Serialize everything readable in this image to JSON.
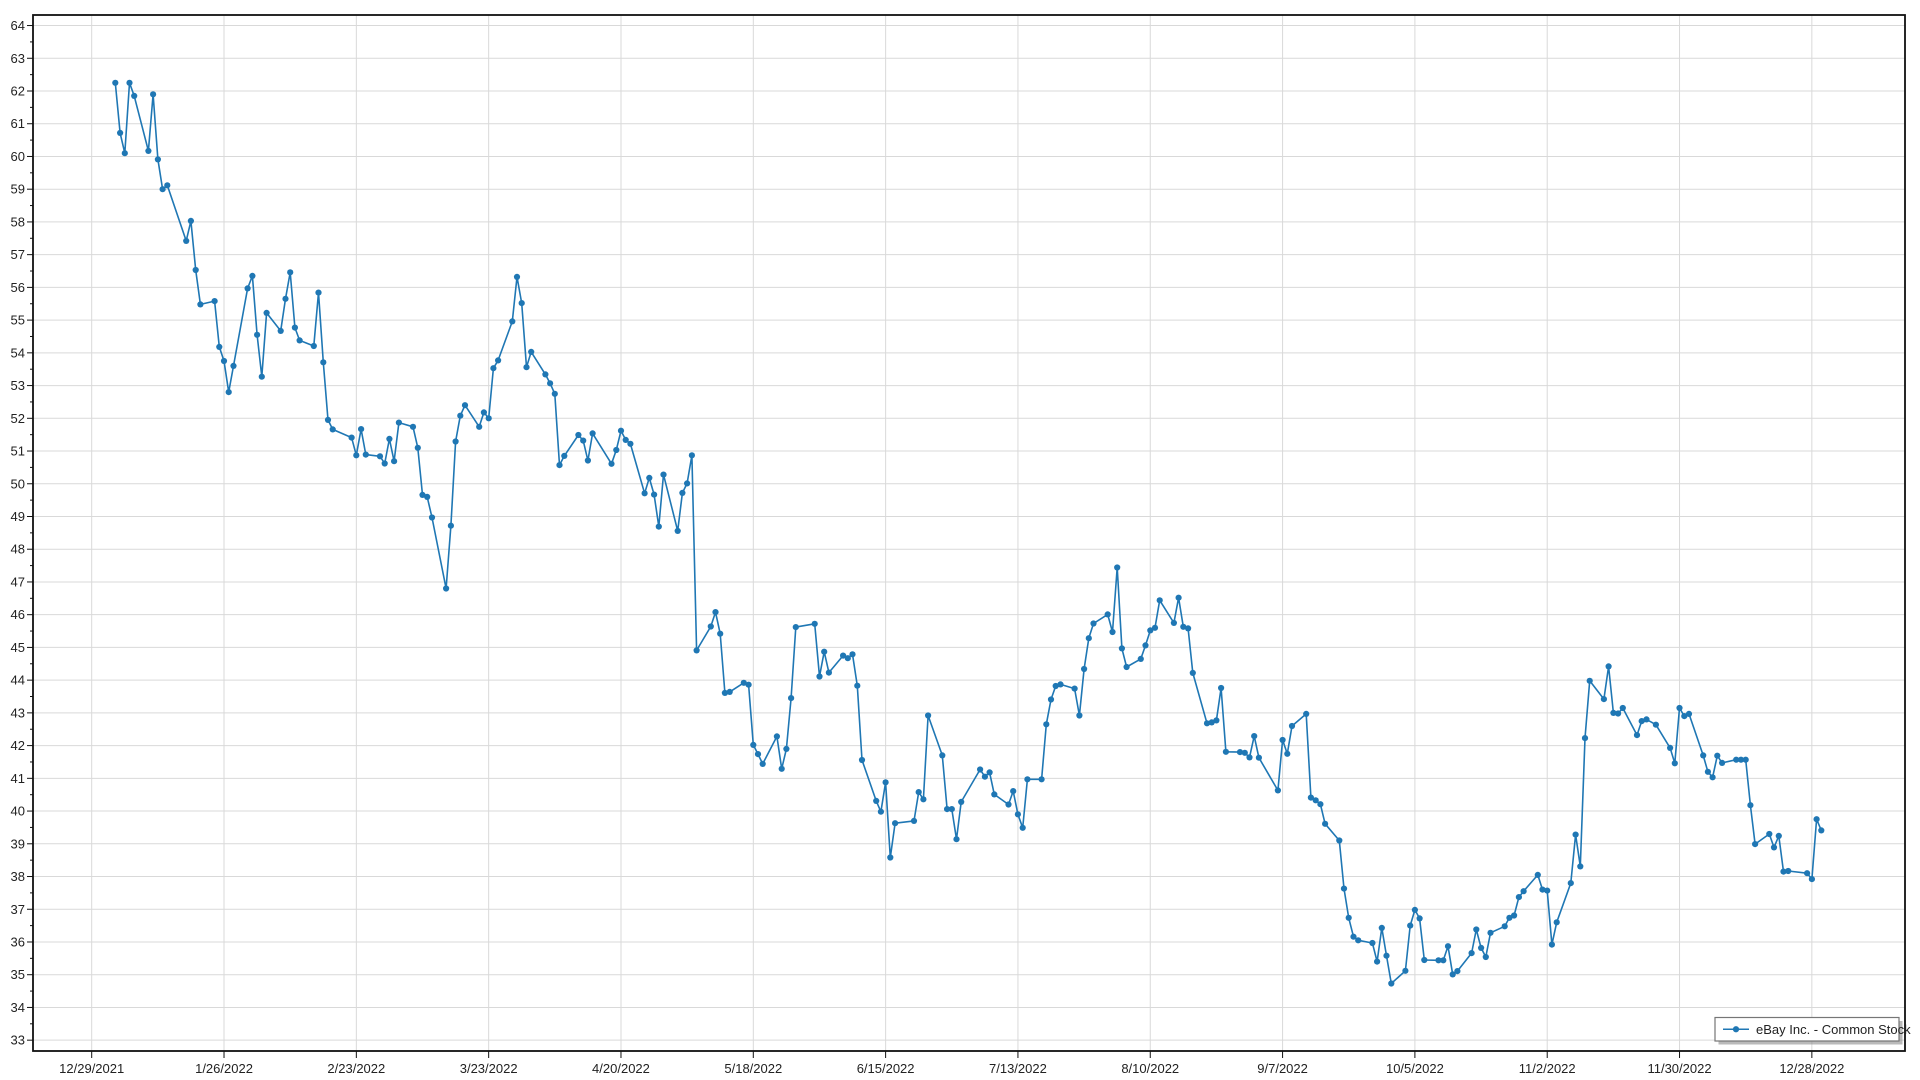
{
  "chart_data": {
    "type": "line",
    "title": "",
    "grid": true,
    "legend": {
      "position": "bottom-right",
      "label": "eBay Inc. - Common Stock"
    },
    "colors": {
      "line": "#1f77b4",
      "marker": "#1f77b4",
      "grid": "#d9d9d9",
      "axis": "#111111",
      "text": "#222222",
      "legend_border": "#767676",
      "legend_shadow": "#8c8c8c",
      "background": "#ffffff"
    },
    "y_axis": {
      "min": 33,
      "max": 64,
      "step": 1,
      "minor_step": 0.5
    },
    "x_axis": {
      "tick_labels": [
        "12/29/2021",
        "1/26/2022",
        "2/23/2022",
        "3/23/2022",
        "4/20/2022",
        "5/18/2022",
        "6/15/2022",
        "7/13/2022",
        "8/10/2022",
        "9/7/2022",
        "10/5/2022",
        "11/2/2022",
        "11/30/2022",
        "12/28/2022"
      ],
      "tick_dates": [
        "2021-12-29",
        "2022-01-26",
        "2022-02-23",
        "2022-03-23",
        "2022-04-20",
        "2022-05-18",
        "2022-06-15",
        "2022-07-13",
        "2022-08-10",
        "2022-09-07",
        "2022-10-05",
        "2022-11-02",
        "2022-11-30",
        "2022-12-28"
      ]
    },
    "series": [
      {
        "name": "eBay Inc. - Common Stock",
        "points": [
          [
            "2022-01-03",
            62.25
          ],
          [
            "2022-01-04",
            60.72
          ],
          [
            "2022-01-05",
            60.1
          ],
          [
            "2022-01-06",
            62.25
          ],
          [
            "2022-01-07",
            61.85
          ],
          [
            "2022-01-10",
            60.17
          ],
          [
            "2022-01-11",
            61.9
          ],
          [
            "2022-01-12",
            59.91
          ],
          [
            "2022-01-13",
            59.0
          ],
          [
            "2022-01-14",
            59.12
          ],
          [
            "2022-01-18",
            57.42
          ],
          [
            "2022-01-19",
            58.03
          ],
          [
            "2022-01-20",
            56.53
          ],
          [
            "2022-01-21",
            55.48
          ],
          [
            "2022-01-24",
            55.58
          ],
          [
            "2022-01-25",
            54.18
          ],
          [
            "2022-01-26",
            53.75
          ],
          [
            "2022-01-27",
            52.8
          ],
          [
            "2022-01-28",
            53.6
          ],
          [
            "2022-01-31",
            55.97
          ],
          [
            "2022-02-01",
            56.35
          ],
          [
            "2022-02-02",
            54.55
          ],
          [
            "2022-02-03",
            53.27
          ],
          [
            "2022-02-04",
            55.22
          ],
          [
            "2022-02-07",
            54.67
          ],
          [
            "2022-02-08",
            55.65
          ],
          [
            "2022-02-09",
            56.46
          ],
          [
            "2022-02-10",
            54.77
          ],
          [
            "2022-02-11",
            54.38
          ],
          [
            "2022-02-14",
            54.21
          ],
          [
            "2022-02-15",
            55.84
          ],
          [
            "2022-02-16",
            53.71
          ],
          [
            "2022-02-17",
            51.95
          ],
          [
            "2022-02-18",
            51.66
          ],
          [
            "2022-02-22",
            51.41
          ],
          [
            "2022-02-23",
            50.87
          ],
          [
            "2022-02-24",
            51.67
          ],
          [
            "2022-02-25",
            50.89
          ],
          [
            "2022-02-28",
            50.84
          ],
          [
            "2022-03-01",
            50.62
          ],
          [
            "2022-03-02",
            51.37
          ],
          [
            "2022-03-03",
            50.69
          ],
          [
            "2022-03-04",
            51.87
          ],
          [
            "2022-03-07",
            51.74
          ],
          [
            "2022-03-08",
            51.1
          ],
          [
            "2022-03-09",
            49.66
          ],
          [
            "2022-03-10",
            49.6
          ],
          [
            "2022-03-11",
            48.97
          ],
          [
            "2022-03-14",
            46.8
          ],
          [
            "2022-03-15",
            48.72
          ],
          [
            "2022-03-16",
            51.29
          ],
          [
            "2022-03-17",
            52.08
          ],
          [
            "2022-03-18",
            52.4
          ],
          [
            "2022-03-21",
            51.74
          ],
          [
            "2022-03-22",
            52.18
          ],
          [
            "2022-03-23",
            52.0
          ],
          [
            "2022-03-24",
            53.53
          ],
          [
            "2022-03-25",
            53.77
          ],
          [
            "2022-03-28",
            54.96
          ],
          [
            "2022-03-29",
            56.32
          ],
          [
            "2022-03-30",
            55.52
          ],
          [
            "2022-03-31",
            53.56
          ],
          [
            "2022-04-01",
            54.03
          ],
          [
            "2022-04-04",
            53.34
          ],
          [
            "2022-04-05",
            53.07
          ],
          [
            "2022-04-06",
            52.75
          ],
          [
            "2022-04-07",
            50.57
          ],
          [
            "2022-04-08",
            50.85
          ],
          [
            "2022-04-11",
            51.49
          ],
          [
            "2022-04-12",
            51.32
          ],
          [
            "2022-04-13",
            50.71
          ],
          [
            "2022-04-14",
            51.54
          ],
          [
            "2022-04-18",
            50.61
          ],
          [
            "2022-04-19",
            51.03
          ],
          [
            "2022-04-20",
            51.62
          ],
          [
            "2022-04-21",
            51.34
          ],
          [
            "2022-04-22",
            51.22
          ],
          [
            "2022-04-25",
            49.71
          ],
          [
            "2022-04-26",
            50.18
          ],
          [
            "2022-04-27",
            49.67
          ],
          [
            "2022-04-28",
            48.69
          ],
          [
            "2022-04-29",
            50.28
          ],
          [
            "2022-05-02",
            48.56
          ],
          [
            "2022-05-03",
            49.72
          ],
          [
            "2022-05-04",
            50.01
          ],
          [
            "2022-05-05",
            50.87
          ],
          [
            "2022-05-06",
            44.91
          ],
          [
            "2022-05-09",
            45.64
          ],
          [
            "2022-05-10",
            46.08
          ],
          [
            "2022-05-11",
            45.42
          ],
          [
            "2022-05-12",
            43.61
          ],
          [
            "2022-05-13",
            43.64
          ],
          [
            "2022-05-16",
            43.92
          ],
          [
            "2022-05-17",
            43.86
          ],
          [
            "2022-05-18",
            42.02
          ],
          [
            "2022-05-19",
            41.74
          ],
          [
            "2022-05-20",
            41.44
          ],
          [
            "2022-05-23",
            42.28
          ],
          [
            "2022-05-24",
            41.29
          ],
          [
            "2022-05-25",
            41.9
          ],
          [
            "2022-05-26",
            43.45
          ],
          [
            "2022-05-27",
            45.62
          ],
          [
            "2022-05-31",
            45.72
          ],
          [
            "2022-06-01",
            44.11
          ],
          [
            "2022-06-02",
            44.87
          ],
          [
            "2022-06-03",
            44.23
          ],
          [
            "2022-06-06",
            44.75
          ],
          [
            "2022-06-07",
            44.67
          ],
          [
            "2022-06-08",
            44.79
          ],
          [
            "2022-06-09",
            43.83
          ],
          [
            "2022-06-10",
            41.56
          ],
          [
            "2022-06-13",
            40.31
          ],
          [
            "2022-06-14",
            39.98
          ],
          [
            "2022-06-15",
            40.88
          ],
          [
            "2022-06-16",
            38.58
          ],
          [
            "2022-06-17",
            39.63
          ],
          [
            "2022-06-21",
            39.7
          ],
          [
            "2022-06-22",
            40.58
          ],
          [
            "2022-06-23",
            40.36
          ],
          [
            "2022-06-24",
            42.92
          ],
          [
            "2022-06-27",
            41.7
          ],
          [
            "2022-06-28",
            40.06
          ],
          [
            "2022-06-29",
            40.06
          ],
          [
            "2022-06-30",
            39.14
          ],
          [
            "2022-07-01",
            40.28
          ],
          [
            "2022-07-05",
            41.27
          ],
          [
            "2022-07-06",
            41.05
          ],
          [
            "2022-07-07",
            41.18
          ],
          [
            "2022-07-08",
            40.51
          ],
          [
            "2022-07-11",
            40.2
          ],
          [
            "2022-07-12",
            40.61
          ],
          [
            "2022-07-13",
            39.9
          ],
          [
            "2022-07-14",
            39.49
          ],
          [
            "2022-07-15",
            40.97
          ],
          [
            "2022-07-18",
            40.97
          ],
          [
            "2022-07-19",
            42.65
          ],
          [
            "2022-07-20",
            43.41
          ],
          [
            "2022-07-21",
            43.82
          ],
          [
            "2022-07-22",
            43.87
          ],
          [
            "2022-07-25",
            43.74
          ],
          [
            "2022-07-26",
            42.92
          ],
          [
            "2022-07-27",
            44.34
          ],
          [
            "2022-07-28",
            45.28
          ],
          [
            "2022-07-29",
            45.73
          ],
          [
            "2022-08-01",
            46.01
          ],
          [
            "2022-08-02",
            45.47
          ],
          [
            "2022-08-03",
            47.44
          ],
          [
            "2022-08-04",
            44.97
          ],
          [
            "2022-08-05",
            44.4
          ],
          [
            "2022-08-08",
            44.65
          ],
          [
            "2022-08-09",
            45.06
          ],
          [
            "2022-08-10",
            45.52
          ],
          [
            "2022-08-11",
            45.6
          ],
          [
            "2022-08-12",
            46.44
          ],
          [
            "2022-08-15",
            45.75
          ],
          [
            "2022-08-16",
            46.52
          ],
          [
            "2022-08-17",
            45.63
          ],
          [
            "2022-08-18",
            45.58
          ],
          [
            "2022-08-19",
            44.22
          ],
          [
            "2022-08-22",
            42.68
          ],
          [
            "2022-08-23",
            42.71
          ],
          [
            "2022-08-24",
            42.77
          ],
          [
            "2022-08-25",
            43.76
          ],
          [
            "2022-08-26",
            41.81
          ],
          [
            "2022-08-29",
            41.8
          ],
          [
            "2022-08-30",
            41.78
          ],
          [
            "2022-08-31",
            41.64
          ],
          [
            "2022-09-01",
            42.29
          ],
          [
            "2022-09-02",
            41.63
          ],
          [
            "2022-09-06",
            40.63
          ],
          [
            "2022-09-07",
            42.17
          ],
          [
            "2022-09-08",
            41.75
          ],
          [
            "2022-09-09",
            42.6
          ],
          [
            "2022-09-12",
            42.97
          ],
          [
            "2022-09-13",
            40.41
          ],
          [
            "2022-09-14",
            40.33
          ],
          [
            "2022-09-15",
            40.21
          ],
          [
            "2022-09-16",
            39.61
          ],
          [
            "2022-09-19",
            39.1
          ],
          [
            "2022-09-20",
            37.63
          ],
          [
            "2022-09-21",
            36.74
          ],
          [
            "2022-09-22",
            36.16
          ],
          [
            "2022-09-23",
            36.05
          ],
          [
            "2022-09-26",
            35.97
          ],
          [
            "2022-09-27",
            35.4
          ],
          [
            "2022-09-28",
            36.43
          ],
          [
            "2022-09-29",
            35.58
          ],
          [
            "2022-09-30",
            34.73
          ],
          [
            "2022-10-03",
            35.12
          ],
          [
            "2022-10-04",
            36.5
          ],
          [
            "2022-10-05",
            36.98
          ],
          [
            "2022-10-06",
            36.72
          ],
          [
            "2022-10-07",
            35.45
          ],
          [
            "2022-10-10",
            35.44
          ],
          [
            "2022-10-11",
            35.44
          ],
          [
            "2022-10-12",
            35.87
          ],
          [
            "2022-10-13",
            35.01
          ],
          [
            "2022-10-14",
            35.11
          ],
          [
            "2022-10-17",
            35.66
          ],
          [
            "2022-10-18",
            36.38
          ],
          [
            "2022-10-19",
            35.82
          ],
          [
            "2022-10-20",
            35.54
          ],
          [
            "2022-10-21",
            36.28
          ],
          [
            "2022-10-24",
            36.48
          ],
          [
            "2022-10-25",
            36.74
          ],
          [
            "2022-10-26",
            36.81
          ],
          [
            "2022-10-27",
            37.37
          ],
          [
            "2022-10-28",
            37.55
          ],
          [
            "2022-10-31",
            38.05
          ],
          [
            "2022-11-01",
            37.6
          ],
          [
            "2022-11-02",
            37.57
          ],
          [
            "2022-11-03",
            35.92
          ],
          [
            "2022-11-04",
            36.6
          ],
          [
            "2022-11-07",
            37.8
          ],
          [
            "2022-11-08",
            39.28
          ],
          [
            "2022-11-09",
            38.31
          ],
          [
            "2022-11-10",
            42.23
          ],
          [
            "2022-11-11",
            43.98
          ],
          [
            "2022-11-14",
            43.42
          ],
          [
            "2022-11-15",
            44.42
          ],
          [
            "2022-11-16",
            43.0
          ],
          [
            "2022-11-17",
            42.98
          ],
          [
            "2022-11-18",
            43.15
          ],
          [
            "2022-11-21",
            42.32
          ],
          [
            "2022-11-22",
            42.75
          ],
          [
            "2022-11-23",
            42.8
          ],
          [
            "2022-11-25",
            42.64
          ],
          [
            "2022-11-28",
            41.93
          ],
          [
            "2022-11-29",
            41.46
          ],
          [
            "2022-11-30",
            43.15
          ],
          [
            "2022-12-01",
            42.9
          ],
          [
            "2022-12-02",
            42.97
          ],
          [
            "2022-12-05",
            41.7
          ],
          [
            "2022-12-06",
            41.2
          ],
          [
            "2022-12-07",
            41.03
          ],
          [
            "2022-12-08",
            41.69
          ],
          [
            "2022-12-09",
            41.47
          ],
          [
            "2022-12-12",
            41.57
          ],
          [
            "2022-12-13",
            41.57
          ],
          [
            "2022-12-14",
            41.57
          ],
          [
            "2022-12-15",
            40.18
          ],
          [
            "2022-12-16",
            38.99
          ],
          [
            "2022-12-19",
            39.3
          ],
          [
            "2022-12-20",
            38.89
          ],
          [
            "2022-12-21",
            39.24
          ],
          [
            "2022-12-22",
            38.15
          ],
          [
            "2022-12-23",
            38.17
          ],
          [
            "2022-12-27",
            38.1
          ],
          [
            "2022-12-28",
            37.92
          ],
          [
            "2022-12-29",
            39.75
          ],
          [
            "2022-12-30",
            39.41
          ]
        ]
      }
    ]
  }
}
